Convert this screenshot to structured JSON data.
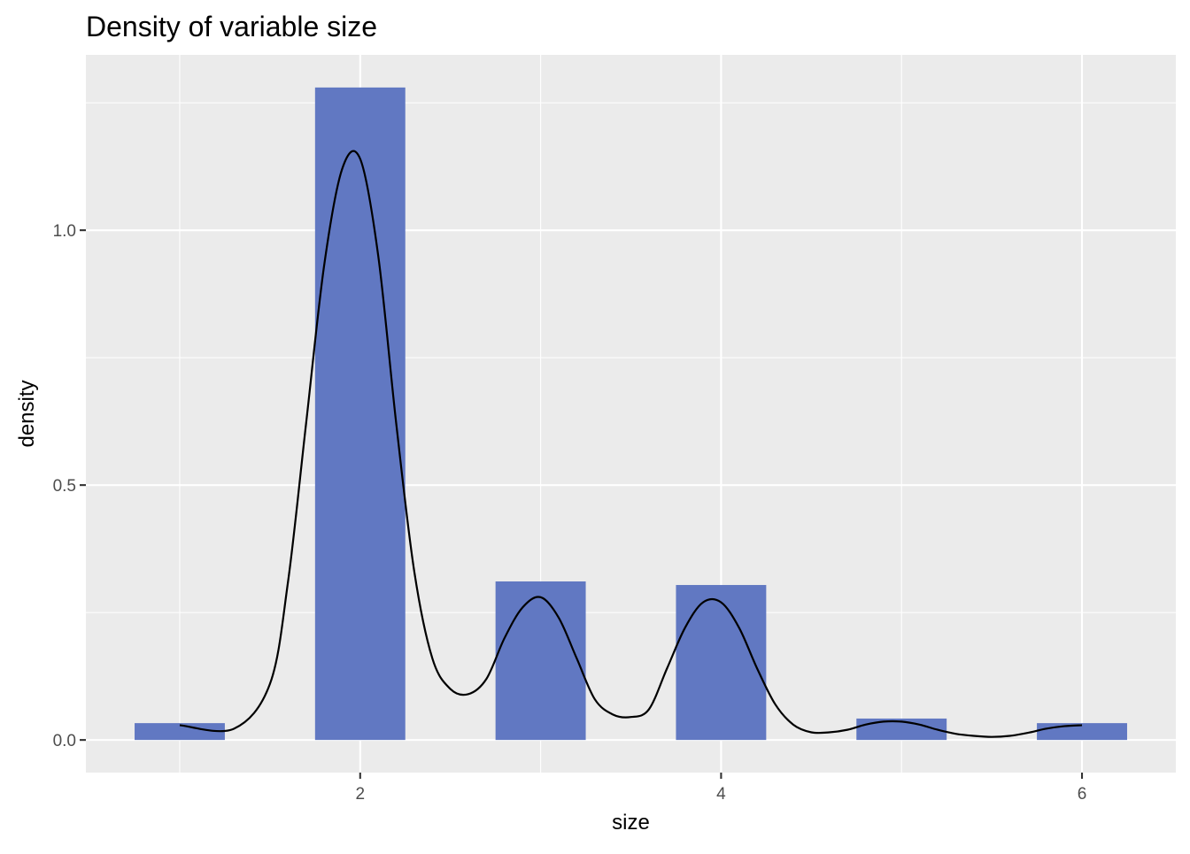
{
  "chart_data": {
    "type": "bar",
    "title": "Density of variable size",
    "xlabel": "size",
    "ylabel": "density",
    "xlim": [
      0.48,
      6.52
    ],
    "ylim": [
      -0.064,
      1.344
    ],
    "x_ticks": [
      2,
      4,
      6
    ],
    "x_tick_labels": [
      "2",
      "4",
      "6"
    ],
    "x_minor_ticks": [
      1,
      3,
      5
    ],
    "y_ticks": [
      0,
      0.5,
      1
    ],
    "y_tick_labels": [
      "0.0",
      "0.5",
      "1.0"
    ],
    "y_minor_ticks": [
      0.25,
      0.75,
      1.25
    ],
    "grid": true,
    "bar_width": 0.5,
    "bar_color": "#6178c2",
    "categories": [
      1,
      2,
      3,
      4,
      5,
      6
    ],
    "values": [
      0.033,
      1.28,
      0.311,
      0.304,
      0.042,
      0.033
    ],
    "density_curve": {
      "color": "#000000",
      "x": [
        1.0,
        1.3,
        1.5,
        1.6,
        1.7,
        1.8,
        1.9,
        2.0,
        2.1,
        2.2,
        2.3,
        2.4,
        2.5,
        2.6,
        2.7,
        2.8,
        2.9,
        3.0,
        3.1,
        3.2,
        3.3,
        3.4,
        3.5,
        3.6,
        3.7,
        3.8,
        3.9,
        4.0,
        4.1,
        4.2,
        4.3,
        4.4,
        4.5,
        4.6,
        4.7,
        4.8,
        4.9,
        5.0,
        5.1,
        5.2,
        5.3,
        5.4,
        5.5,
        5.6,
        5.7,
        5.8,
        5.9,
        6.0
      ],
      "y": [
        0.029,
        0.022,
        0.11,
        0.31,
        0.62,
        0.93,
        1.12,
        1.14,
        0.95,
        0.62,
        0.33,
        0.16,
        0.1,
        0.09,
        0.12,
        0.2,
        0.26,
        0.28,
        0.24,
        0.16,
        0.08,
        0.05,
        0.045,
        0.06,
        0.14,
        0.22,
        0.27,
        0.27,
        0.22,
        0.14,
        0.07,
        0.03,
        0.015,
        0.015,
        0.02,
        0.03,
        0.036,
        0.036,
        0.03,
        0.02,
        0.012,
        0.008,
        0.006,
        0.008,
        0.014,
        0.022,
        0.027,
        0.029
      ]
    }
  }
}
